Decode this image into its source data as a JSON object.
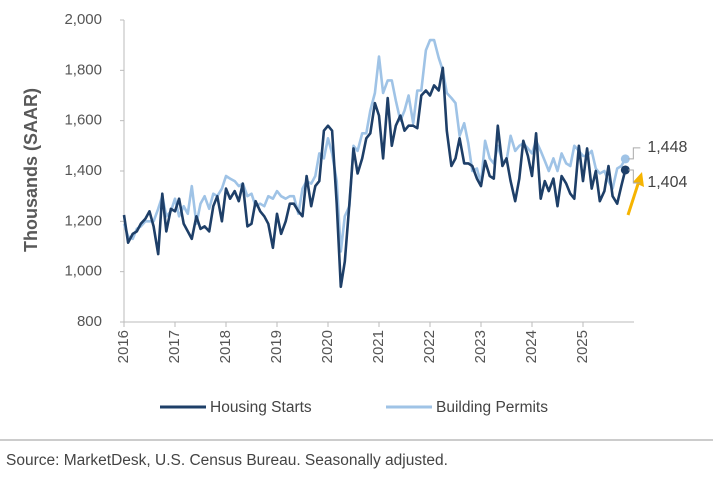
{
  "chart_data": {
    "type": "line",
    "ylabel": "Thousands (SAAR)",
    "source": "Source: MarketDesk, U.S. Census Bureau. Seasonally adjusted.",
    "x": [
      2016,
      2016.08,
      2016.17,
      2016.25,
      2016.33,
      2016.42,
      2016.5,
      2016.58,
      2016.67,
      2016.75,
      2016.83,
      2016.92,
      2017,
      2017.08,
      2017.17,
      2017.25,
      2017.33,
      2017.42,
      2017.5,
      2017.58,
      2017.67,
      2017.75,
      2017.83,
      2017.92,
      2018,
      2018.08,
      2018.17,
      2018.25,
      2018.33,
      2018.42,
      2018.5,
      2018.58,
      2018.67,
      2018.75,
      2018.83,
      2018.92,
      2019,
      2019.08,
      2019.17,
      2019.25,
      2019.33,
      2019.42,
      2019.5,
      2019.58,
      2019.67,
      2019.75,
      2019.83,
      2019.92,
      2020,
      2020.08,
      2020.17,
      2020.25,
      2020.33,
      2020.42,
      2020.5,
      2020.58,
      2020.67,
      2020.75,
      2020.83,
      2020.92,
      2021,
      2021.08,
      2021.17,
      2021.25,
      2021.33,
      2021.42,
      2021.5,
      2021.58,
      2021.67,
      2021.75,
      2021.83,
      2021.92,
      2022,
      2022.08,
      2022.17,
      2022.25,
      2022.33,
      2022.42,
      2022.5,
      2022.58,
      2022.67,
      2022.75,
      2022.83,
      2022.92,
      2023,
      2023.08,
      2023.17,
      2023.25,
      2023.33,
      2023.42,
      2023.5,
      2023.58,
      2023.67,
      2023.75,
      2023.83,
      2023.92,
      2024,
      2024.08,
      2024.17,
      2024.25,
      2024.33,
      2024.42,
      2024.5,
      2024.58,
      2024.67,
      2024.75,
      2024.83,
      2024.92,
      2025,
      2025.08,
      2025.17,
      2025.25,
      2025.33,
      2025.42,
      2025.5,
      2025.58,
      2025.67,
      2025.75,
      2025.83
    ],
    "series": [
      {
        "name": "Housing Starts",
        "color": "#1e3f68",
        "end_label": "1,404",
        "values": [
          1225,
          1115,
          1150,
          1160,
          1190,
          1210,
          1240,
          1180,
          1070,
          1310,
          1160,
          1250,
          1240,
          1290,
          1190,
          1160,
          1130,
          1220,
          1170,
          1180,
          1160,
          1260,
          1300,
          1200,
          1330,
          1290,
          1320,
          1280,
          1350,
          1180,
          1190,
          1280,
          1240,
          1220,
          1190,
          1095,
          1230,
          1150,
          1200,
          1270,
          1270,
          1240,
          1220,
          1380,
          1260,
          1340,
          1360,
          1560,
          1580,
          1560,
          1270,
          940,
          1040,
          1270,
          1490,
          1390,
          1450,
          1530,
          1550,
          1670,
          1620,
          1450,
          1690,
          1500,
          1580,
          1620,
          1560,
          1580,
          1580,
          1570,
          1700,
          1720,
          1700,
          1740,
          1720,
          1810,
          1560,
          1420,
          1450,
          1530,
          1430,
          1430,
          1420,
          1370,
          1340,
          1440,
          1380,
          1370,
          1580,
          1420,
          1450,
          1360,
          1280,
          1370,
          1520,
          1460,
          1380,
          1550,
          1290,
          1360,
          1320,
          1370,
          1260,
          1380,
          1350,
          1310,
          1290,
          1500,
          1360,
          1490,
          1330,
          1400,
          1280,
          1320,
          1420,
          1300,
          1270,
          1340,
          1404
        ]
      },
      {
        "name": "Building Permits",
        "color": "#9fc3e6",
        "end_label": "1,448",
        "values": [
          1190,
          1140,
          1130,
          1170,
          1180,
          1200,
          1200,
          1200,
          1250,
          1300,
          1220,
          1240,
          1290,
          1220,
          1260,
          1230,
          1340,
          1190,
          1270,
          1300,
          1250,
          1310,
          1300,
          1330,
          1380,
          1370,
          1360,
          1340,
          1350,
          1300,
          1310,
          1260,
          1270,
          1260,
          1300,
          1290,
          1320,
          1300,
          1290,
          1300,
          1300,
          1230,
          1330,
          1360,
          1350,
          1380,
          1470,
          1450,
          1530,
          1470,
          1360,
          1080,
          1220,
          1260,
          1500,
          1480,
          1550,
          1550,
          1640,
          1710,
          1855,
          1710,
          1760,
          1760,
          1680,
          1600,
          1640,
          1700,
          1590,
          1720,
          1720,
          1880,
          1920,
          1920,
          1850,
          1800,
          1710,
          1690,
          1670,
          1540,
          1590,
          1510,
          1400,
          1410,
          1350,
          1520,
          1450,
          1430,
          1500,
          1440,
          1440,
          1540,
          1480,
          1500,
          1510,
          1490,
          1470,
          1520,
          1480,
          1440,
          1400,
          1450,
          1400,
          1470,
          1430,
          1420,
          1500,
          1480,
          1460,
          1460,
          1480,
          1410,
          1390,
          1400,
          1360,
          1330,
          1410,
          1420,
          1448
        ]
      }
    ],
    "xlim": [
      2016,
      2026
    ],
    "xticks": [
      2016,
      2017,
      2018,
      2019,
      2020,
      2021,
      2022,
      2023,
      2024,
      2025
    ],
    "ylim": [
      800,
      2000
    ],
    "yticks": [
      800,
      {
        "value": 1000,
        "label": "1,000"
      },
      {
        "value": 1200,
        "label": "1,200"
      },
      {
        "value": 1400,
        "label": "1,400"
      },
      {
        "value": 1600,
        "label": "1,600"
      },
      {
        "value": 1800,
        "label": "1,800"
      },
      {
        "value": 2000,
        "label": "2,000"
      }
    ],
    "grid": false,
    "legend": "bottom"
  }
}
